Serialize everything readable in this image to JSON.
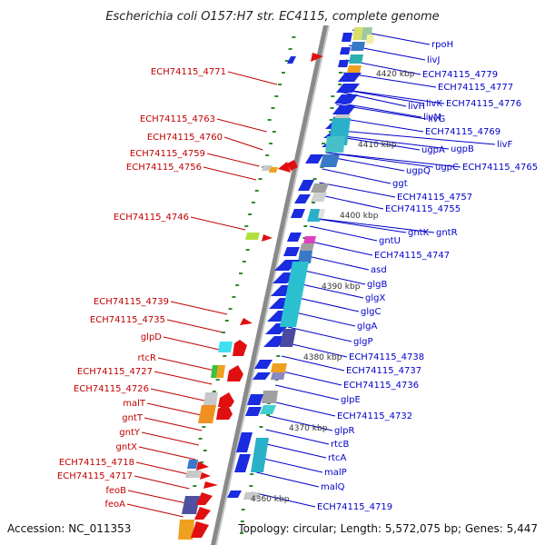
{
  "title": "Escherichia coli O157:H7 str. EC4115, complete genome",
  "footer": {
    "accession": "Accession: NC_011353",
    "summary": "Topology: circular; Length: 5,572,075 bp; Genes: 5,447"
  },
  "scale_labels": [
    "4420 kbp",
    "4410 kbp",
    "4400 kbp",
    "4390 kbp",
    "4380 kbp",
    "4370 kbp",
    "4360 kbp"
  ],
  "left_labels": [
    "ECH74115_4771",
    "ECH74115_4763",
    "ECH74115_4760",
    "ECH74115_4759",
    "ECH74115_4756",
    "ECH74115_4746",
    "ECH74115_4739",
    "ECH74115_4735",
    "glpD",
    "rtcR",
    "ECH74115_4727",
    "ECH74115_4726",
    "malT",
    "gntT",
    "gntY",
    "gntX",
    "ECH74115_4718",
    "ECH74115_4717",
    "feoB",
    "feoA"
  ],
  "right_labels": [
    "rpoH",
    "livJ",
    "ECH74115_4779",
    "ECH74115_4777",
    "livH",
    "livK",
    "ECH74115_4776",
    "livM",
    "livG",
    "ECH74115_4769",
    "livF",
    "ugpA",
    "ugpB",
    "ugpC",
    "ugpQ",
    "ECH74115_4765",
    "ggt",
    "ECH74115_4757",
    "ECH74115_4755",
    "gntK",
    "gntR",
    "gntU",
    "ECH74115_4747",
    "asd",
    "glgB",
    "glgX",
    "glgC",
    "glgA",
    "glgP",
    "ECH74115_4738",
    "ECH74115_4737",
    "ECH74115_4736",
    "glpE",
    "ECH74115_4732",
    "glpR",
    "rtcB",
    "rtcA",
    "malP",
    "malQ",
    "ECH74115_4719"
  ],
  "colors": {
    "backbone": "#808080",
    "forward_gene": "#e01010",
    "reverse_gene": "#1a2be0",
    "left_label": "#c00000",
    "right_label": "#0000c8",
    "tick": "#2e8b2e"
  }
}
